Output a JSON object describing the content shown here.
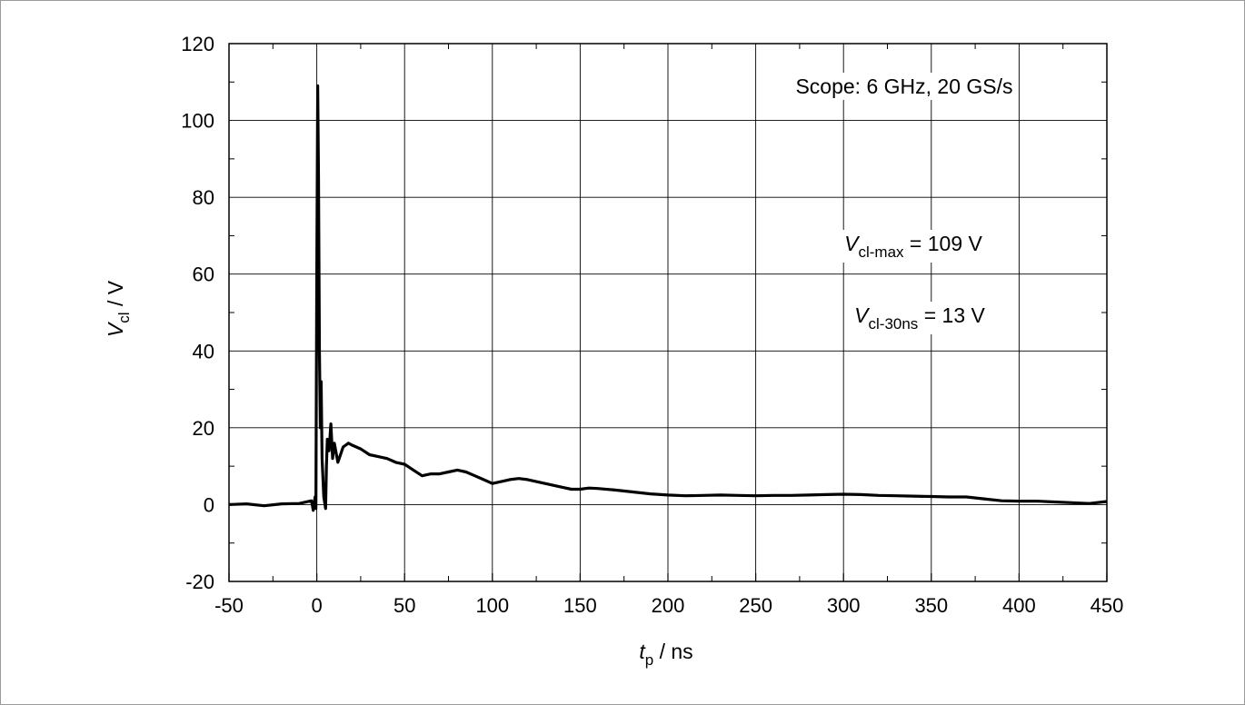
{
  "chart_data": {
    "type": "line",
    "title": "",
    "xlabel": {
      "var": "t",
      "sub": "p",
      "unit": " / ns"
    },
    "ylabel": {
      "var": "V",
      "sub": "cl",
      "unit": " / V"
    },
    "xlim": [
      -50,
      450
    ],
    "ylim": [
      -20,
      120
    ],
    "xticks": [
      -50,
      0,
      50,
      100,
      150,
      200,
      250,
      300,
      350,
      400,
      450
    ],
    "yticks": [
      -20,
      0,
      20,
      40,
      60,
      80,
      100,
      120
    ],
    "xtick_labels": [
      "-50",
      "0",
      "50",
      "100",
      "150",
      "200",
      "250",
      "300",
      "350",
      "400",
      "450"
    ],
    "ytick_labels": [
      "-20",
      "0",
      "20",
      "40",
      "60",
      "80",
      "100",
      "120"
    ],
    "grid": true,
    "annotations": {
      "scope": "Scope: 6 GHz, 20 GS/s",
      "vmax": {
        "var": "V",
        "sub": "cl-max",
        "text": " = 109 V"
      },
      "v30": {
        "var": "V",
        "sub": "cl-30ns",
        "text": " = 13 V"
      }
    },
    "series": [
      {
        "color": "#000000",
        "x": [
          -50,
          -40,
          -30,
          -20,
          -10,
          -3,
          -2,
          -1,
          -0.5,
          0,
          0.5,
          1,
          1.5,
          2,
          2.5,
          3,
          4,
          5,
          5.5,
          6,
          7,
          8,
          9,
          10,
          12,
          15,
          18,
          20,
          25,
          30,
          35,
          40,
          45,
          50,
          55,
          60,
          65,
          70,
          75,
          80,
          85,
          90,
          95,
          100,
          105,
          110,
          115,
          120,
          125,
          130,
          135,
          140,
          145,
          150,
          155,
          160,
          170,
          180,
          190,
          200,
          210,
          220,
          230,
          240,
          250,
          260,
          270,
          280,
          290,
          300,
          310,
          320,
          330,
          340,
          350,
          360,
          370,
          380,
          390,
          400,
          410,
          420,
          430,
          440,
          450
        ],
        "y": [
          0,
          0.2,
          -0.3,
          0.2,
          0.3,
          1,
          -1.5,
          2,
          -1,
          60,
          109,
          85,
          40,
          20,
          32,
          12,
          2,
          -1,
          10,
          17,
          14,
          21,
          12,
          16,
          11,
          15,
          16,
          15.5,
          14.5,
          13,
          12.5,
          12,
          11,
          10.5,
          9,
          7.5,
          8,
          8,
          8.5,
          9,
          8.5,
          7.5,
          6.5,
          5.5,
          6,
          6.5,
          6.8,
          6.5,
          6,
          5.5,
          5,
          4.5,
          4,
          4,
          4.3,
          4.2,
          3.8,
          3.3,
          2.8,
          2.5,
          2.3,
          2.4,
          2.5,
          2.4,
          2.3,
          2.4,
          2.4,
          2.5,
          2.6,
          2.7,
          2.6,
          2.4,
          2.3,
          2.2,
          2.1,
          2.0,
          2.0,
          1.5,
          1.0,
          0.9,
          0.9,
          0.7,
          0.5,
          0.3,
          0.8
        ]
      }
    ]
  }
}
